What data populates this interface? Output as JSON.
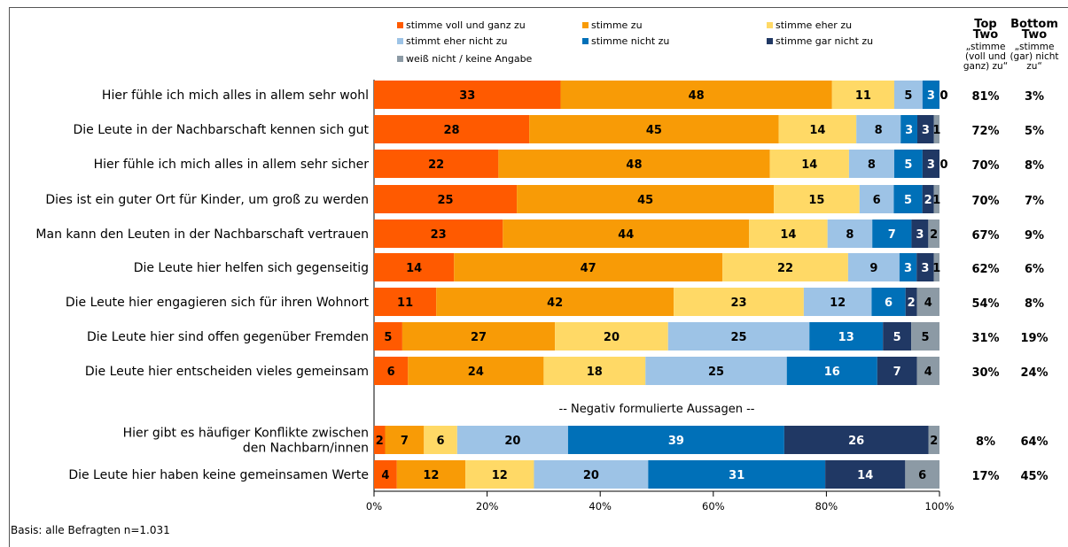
{
  "chart_data": {
    "type": "bar",
    "orientation": "horizontal",
    "stacked": true,
    "xlim": [
      0,
      100
    ],
    "x_ticks": [
      "0%",
      "20%",
      "40%",
      "60%",
      "80%",
      "100%"
    ],
    "series": [
      {
        "name": "stimme voll und ganz zu",
        "color": "#FF5A00"
      },
      {
        "name": "stimme zu",
        "color": "#F89B06"
      },
      {
        "name": "stimme eher zu",
        "color": "#FFD966"
      },
      {
        "name": "stimmt eher nicht zu",
        "color": "#9DC3E6"
      },
      {
        "name": "stimme nicht zu",
        "color": "#0070B8"
      },
      {
        "name": "stimme gar nicht zu",
        "color": "#203864"
      },
      {
        "name": "weiß nicht / keine Angabe",
        "color": "#8C9AA5"
      }
    ],
    "summary_headers": [
      {
        "title": "Top Two",
        "sub": "„stimme (voll und ganz) zu“"
      },
      {
        "title": "Bottom Two",
        "sub": "„stimme (gar) nicht zu“"
      }
    ],
    "rows": [
      {
        "label": "Hier fühle ich mich alles in allem sehr wohl",
        "values": [
          33,
          48,
          11,
          5,
          3,
          0,
          0
        ],
        "top_two": "81%",
        "bottom_two": "3%"
      },
      {
        "label": "Die Leute in der Nachbarschaft kennen sich gut",
        "values": [
          28,
          45,
          14,
          8,
          3,
          3,
          1
        ],
        "top_two": "72%",
        "bottom_two": "5%"
      },
      {
        "label": "Hier fühle ich mich alles in allem sehr sicher",
        "values": [
          22,
          48,
          14,
          8,
          5,
          3,
          0
        ],
        "top_two": "70%",
        "bottom_two": "8%"
      },
      {
        "label": "Dies ist ein guter Ort für Kinder, um groß zu werden",
        "values": [
          25,
          45,
          15,
          6,
          5,
          2,
          1
        ],
        "top_two": "70%",
        "bottom_two": "7%"
      },
      {
        "label": "Man kann den Leuten in der Nachbarschaft vertrauen",
        "values": [
          23,
          44,
          14,
          8,
          7,
          3,
          2
        ],
        "top_two": "67%",
        "bottom_two": "9%"
      },
      {
        "label": "Die Leute hier helfen sich gegenseitig",
        "values": [
          14,
          47,
          22,
          9,
          3,
          3,
          1
        ],
        "top_two": "62%",
        "bottom_two": "6%"
      },
      {
        "label": "Die Leute hier engagieren sich für ihren Wohnort",
        "values": [
          11,
          42,
          23,
          12,
          6,
          2,
          4
        ],
        "top_two": "54%",
        "bottom_two": "8%"
      },
      {
        "label": "Die Leute hier sind offen gegenüber Fremden",
        "values": [
          5,
          27,
          20,
          25,
          13,
          5,
          5
        ],
        "top_two": "31%",
        "bottom_two": "19%"
      },
      {
        "label": "Die Leute hier entscheiden vieles gemeinsam",
        "values": [
          6,
          24,
          18,
          25,
          16,
          7,
          4
        ],
        "top_two": "30%",
        "bottom_two": "24%"
      },
      {
        "label": "Hier gibt es häufiger Konflikte zwischen den Nachbarn/innen",
        "values": [
          2,
          7,
          6,
          20,
          39,
          26,
          2
        ],
        "top_two": "8%",
        "bottom_two": "64%"
      },
      {
        "label": "Die Leute hier haben keine gemeinsamen Werte",
        "values": [
          4,
          12,
          12,
          20,
          31,
          14,
          6
        ],
        "top_two": "17%",
        "bottom_two": "45%"
      }
    ],
    "separator_label": "-- Negativ formulierte Aussagen --"
  },
  "footnote": "Basis: alle Befragten n=1.031"
}
